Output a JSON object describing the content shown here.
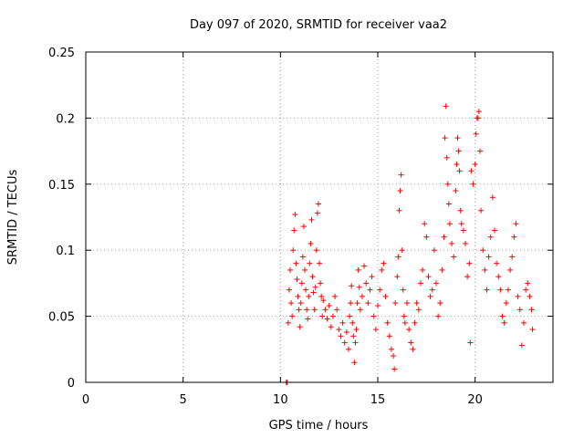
{
  "chart_data": {
    "type": "scatter",
    "title": "Day 097 of 2020, SRMTID for receiver vaa2",
    "xlabel": "GPS time / hours",
    "ylabel": "SRMTID / TECUs",
    "xlim": [
      0,
      24
    ],
    "ylim": [
      0,
      0.25
    ],
    "x_ticks": [
      0,
      5,
      10,
      15,
      20
    ],
    "x_tick_labels": [
      "0",
      "5",
      "10",
      "15",
      "20"
    ],
    "y_ticks": [
      0,
      0.05,
      0.1,
      0.15,
      0.2,
      0.25
    ],
    "y_tick_labels": [
      "0",
      "0.05",
      "0.1",
      "0.15",
      "0.2",
      "0.25"
    ],
    "grid": true,
    "marker": "+",
    "series": [
      {
        "name": "SRMTID",
        "color": "#ff0000",
        "points": [
          [
            10.3,
            0.0
          ],
          [
            10.35,
            0.0
          ],
          [
            10.4,
            0.045
          ],
          [
            10.45,
            0.07
          ],
          [
            10.5,
            0.085
          ],
          [
            10.55,
            0.06
          ],
          [
            10.6,
            0.05
          ],
          [
            10.65,
            0.1
          ],
          [
            10.7,
            0.115
          ],
          [
            10.75,
            0.127
          ],
          [
            10.8,
            0.09
          ],
          [
            10.85,
            0.078
          ],
          [
            10.9,
            0.065
          ],
          [
            10.95,
            0.055
          ],
          [
            11.0,
            0.042
          ],
          [
            11.05,
            0.06
          ],
          [
            11.1,
            0.075
          ],
          [
            11.15,
            0.095
          ],
          [
            11.2,
            0.118
          ],
          [
            11.25,
            0.085
          ],
          [
            11.3,
            0.07
          ],
          [
            11.35,
            0.055
          ],
          [
            11.4,
            0.048
          ],
          [
            11.45,
            0.065
          ],
          [
            11.5,
            0.09
          ],
          [
            11.55,
            0.105
          ],
          [
            11.6,
            0.123
          ],
          [
            11.65,
            0.08
          ],
          [
            11.7,
            0.068
          ],
          [
            11.75,
            0.055
          ],
          [
            11.8,
            0.072
          ],
          [
            11.85,
            0.1
          ],
          [
            11.9,
            0.128
          ],
          [
            11.95,
            0.135
          ],
          [
            12.0,
            0.09
          ],
          [
            12.05,
            0.075
          ],
          [
            12.1,
            0.065
          ],
          [
            12.15,
            0.05
          ],
          [
            12.2,
            0.062
          ],
          [
            12.3,
            0.055
          ],
          [
            12.4,
            0.048
          ],
          [
            12.5,
            0.058
          ],
          [
            12.6,
            0.042
          ],
          [
            12.7,
            0.05
          ],
          [
            12.8,
            0.065
          ],
          [
            12.9,
            0.055
          ],
          [
            13.0,
            0.04
          ],
          [
            13.1,
            0.035
          ],
          [
            13.2,
            0.045
          ],
          [
            13.3,
            0.03
          ],
          [
            13.4,
            0.038
          ],
          [
            13.5,
            0.025
          ],
          [
            13.55,
            0.05
          ],
          [
            13.6,
            0.06
          ],
          [
            13.65,
            0.073
          ],
          [
            13.7,
            0.045
          ],
          [
            13.75,
            0.035
          ],
          [
            13.8,
            0.015
          ],
          [
            13.85,
            0.03
          ],
          [
            13.9,
            0.04
          ],
          [
            13.95,
            0.06
          ],
          [
            14.0,
            0.085
          ],
          [
            14.05,
            0.072
          ],
          [
            14.1,
            0.055
          ],
          [
            14.2,
            0.065
          ],
          [
            14.3,
            0.088
          ],
          [
            14.4,
            0.075
          ],
          [
            14.5,
            0.06
          ],
          [
            14.6,
            0.07
          ],
          [
            14.7,
            0.08
          ],
          [
            14.8,
            0.05
          ],
          [
            14.9,
            0.04
          ],
          [
            15.0,
            0.058
          ],
          [
            15.1,
            0.07
          ],
          [
            15.2,
            0.085
          ],
          [
            15.3,
            0.09
          ],
          [
            15.4,
            0.065
          ],
          [
            15.5,
            0.045
          ],
          [
            15.6,
            0.035
          ],
          [
            15.7,
            0.025
          ],
          [
            15.8,
            0.02
          ],
          [
            15.85,
            0.01
          ],
          [
            15.9,
            0.06
          ],
          [
            16.0,
            0.08
          ],
          [
            16.05,
            0.095
          ],
          [
            16.1,
            0.13
          ],
          [
            16.15,
            0.145
          ],
          [
            16.2,
            0.157
          ],
          [
            16.25,
            0.1
          ],
          [
            16.3,
            0.07
          ],
          [
            16.35,
            0.05
          ],
          [
            16.4,
            0.045
          ],
          [
            16.5,
            0.06
          ],
          [
            16.6,
            0.04
          ],
          [
            16.7,
            0.03
          ],
          [
            16.8,
            0.025
          ],
          [
            16.9,
            0.045
          ],
          [
            17.0,
            0.06
          ],
          [
            17.1,
            0.055
          ],
          [
            17.2,
            0.075
          ],
          [
            17.3,
            0.085
          ],
          [
            17.4,
            0.12
          ],
          [
            17.5,
            0.11
          ],
          [
            17.6,
            0.08
          ],
          [
            17.7,
            0.065
          ],
          [
            17.8,
            0.07
          ],
          [
            17.9,
            0.1
          ],
          [
            18.0,
            0.075
          ],
          [
            18.1,
            0.05
          ],
          [
            18.2,
            0.06
          ],
          [
            18.3,
            0.085
          ],
          [
            18.4,
            0.11
          ],
          [
            18.45,
            0.185
          ],
          [
            18.5,
            0.209
          ],
          [
            18.55,
            0.17
          ],
          [
            18.6,
            0.15
          ],
          [
            18.65,
            0.135
          ],
          [
            18.7,
            0.12
          ],
          [
            18.8,
            0.105
          ],
          [
            18.9,
            0.095
          ],
          [
            19.0,
            0.145
          ],
          [
            19.05,
            0.165
          ],
          [
            19.1,
            0.185
          ],
          [
            19.15,
            0.175
          ],
          [
            19.2,
            0.16
          ],
          [
            19.25,
            0.13
          ],
          [
            19.3,
            0.12
          ],
          [
            19.4,
            0.115
          ],
          [
            19.5,
            0.105
          ],
          [
            19.6,
            0.08
          ],
          [
            19.7,
            0.09
          ],
          [
            19.75,
            0.03
          ],
          [
            19.8,
            0.16
          ],
          [
            19.9,
            0.15
          ],
          [
            20.0,
            0.165
          ],
          [
            20.05,
            0.188
          ],
          [
            20.1,
            0.2
          ],
          [
            20.15,
            0.2
          ],
          [
            20.2,
            0.205
          ],
          [
            20.25,
            0.175
          ],
          [
            20.3,
            0.13
          ],
          [
            20.4,
            0.1
          ],
          [
            20.5,
            0.085
          ],
          [
            20.6,
            0.07
          ],
          [
            20.7,
            0.095
          ],
          [
            20.8,
            0.11
          ],
          [
            20.9,
            0.14
          ],
          [
            21.0,
            0.115
          ],
          [
            21.1,
            0.09
          ],
          [
            21.2,
            0.08
          ],
          [
            21.3,
            0.07
          ],
          [
            21.4,
            0.05
          ],
          [
            21.5,
            0.045
          ],
          [
            21.6,
            0.06
          ],
          [
            21.7,
            0.07
          ],
          [
            21.8,
            0.085
          ],
          [
            21.9,
            0.095
          ],
          [
            22.0,
            0.11
          ],
          [
            22.1,
            0.12
          ],
          [
            22.2,
            0.065
          ],
          [
            22.3,
            0.055
          ],
          [
            22.4,
            0.028
          ],
          [
            22.5,
            0.045
          ],
          [
            22.6,
            0.07
          ],
          [
            22.7,
            0.075
          ],
          [
            22.8,
            0.065
          ],
          [
            22.9,
            0.055
          ],
          [
            22.95,
            0.04
          ]
        ]
      }
    ]
  }
}
